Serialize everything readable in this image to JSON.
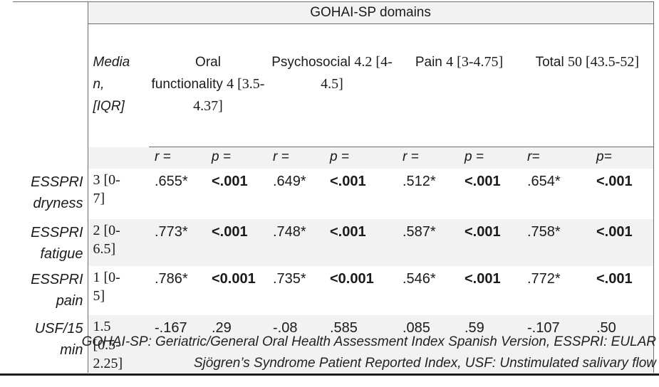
{
  "table": {
    "top_header": "GOHAI-SP domains",
    "median_label": "Media\nn,\n[IQR]",
    "domains": [
      {
        "name": "Oral\nfunctionality",
        "iqr": "4 [3.5-4.37]"
      },
      {
        "name": "Psychosocial",
        "iqr": "4.2 [4-4.5]"
      },
      {
        "name": "Pain",
        "iqr": "4 [3-4.75]"
      },
      {
        "name": "Total",
        "iqr": "50 [43.5-52]"
      }
    ],
    "stat_headers": [
      "r =",
      "p =",
      "r =",
      "p =",
      "r =",
      "p =",
      "r=",
      "p="
    ],
    "rows": [
      {
        "label": "ESSPRI\ndryness",
        "median": "3 [0-\n7]",
        "values": [
          ".655*",
          "<.001",
          ".649*",
          "<.001",
          ".512*",
          "<.001",
          ".654*",
          "<.001"
        ]
      },
      {
        "label": "ESSPRI\nfatigue",
        "median": "2 [0-\n6.5]",
        "values": [
          ".773*",
          "<.001",
          ".748*",
          "<.001",
          ".587*",
          "<.001",
          ".758*",
          "<.001"
        ]
      },
      {
        "label": "ESSPRI\npain",
        "median": "1 [0-\n5]",
        "values": [
          ".786*",
          "<0.001",
          ".735*",
          "<0.001",
          ".546*",
          "<.001",
          ".772*",
          "<.001"
        ]
      },
      {
        "label": "USF/15\nmin",
        "median": "1.5\n[0.5-\n2.25]",
        "values": [
          "-.167",
          ".29",
          "-.08",
          ".585",
          ".085",
          ".59",
          "-.107",
          ".50"
        ]
      }
    ],
    "footnote": "GOHAI-SP: Geriatric/General Oral Health Assessment Index Spanish Version, ESSPRI: EULAR\nSjögren’s Syndrome Patient Reported Index, USF: Unstimulated salivary flow"
  },
  "colors": {
    "row_shade": "#f2f2f2",
    "thin_border": "#6e6e6e",
    "heavy_border": "#1c1c1c"
  }
}
